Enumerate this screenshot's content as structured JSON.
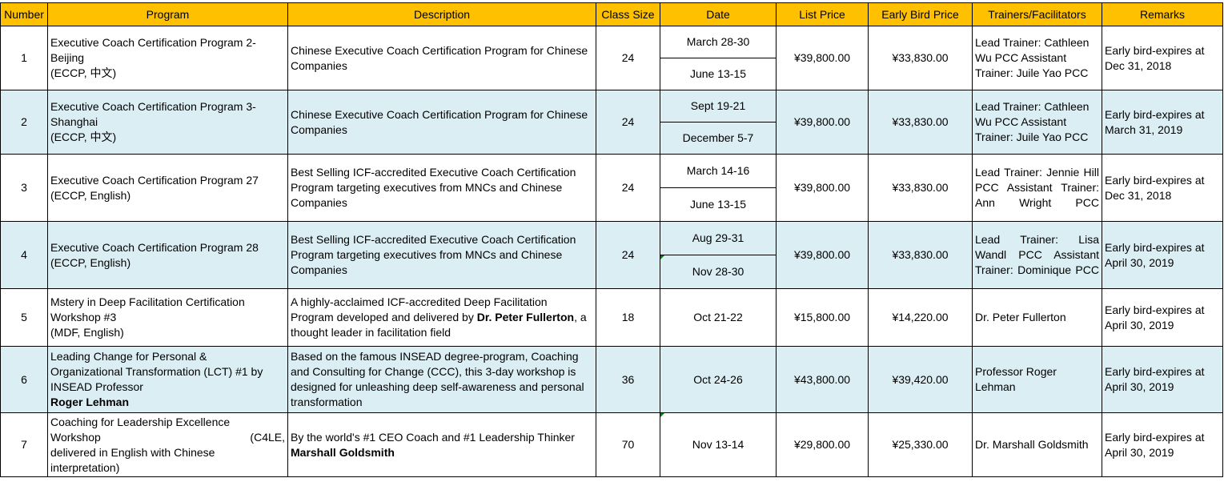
{
  "table": {
    "headers": [
      "Number",
      "Program",
      "Description",
      "Class Size",
      "Date",
      "List Price",
      "Early Bird Price",
      "Trainers/Facilitators",
      "Remarks"
    ],
    "rows": [
      {
        "number": "1",
        "program_lines": [
          "Executive Coach Certification Program 2-",
          "Beijing",
          "(ECCP, 中文)"
        ],
        "description": "Chinese Executive Coach Certification Program for Chinese Companies",
        "class_size": "24",
        "dates": [
          "March 28-30",
          "June 13-15"
        ],
        "list_price": "¥39,800.00",
        "early_bird_price": "¥33,830.00",
        "trainers": "Lead Trainer: Cathleen Wu PCC Assistant Trainer: Juile Yao PCC",
        "remarks": "Early bird-expires at Dec 31, 2018"
      },
      {
        "number": "2",
        "program_lines": [
          "Executive Coach Certification Program 3-",
          "Shanghai",
          "(ECCP, 中文)"
        ],
        "description": "Chinese Executive Coach Certification Program for Chinese Companies",
        "class_size": "24",
        "dates": [
          "Sept 19-21",
          "December 5-7"
        ],
        "list_price": "¥39,800.00",
        "early_bird_price": "¥33,830.00",
        "trainers": "Lead Trainer: Cathleen Wu PCC Assistant Trainer: Juile Yao PCC",
        "remarks": "Early bird-expires at March 31, 2019"
      },
      {
        "number": "3",
        "program_lines": [
          "Executive Coach Certification Program 27",
          "(ECCP, English)"
        ],
        "description": "Best Selling ICF-accredited Executive Coach Certification Program targeting executives from MNCs and Chinese Companies",
        "class_size": "24",
        "dates": [
          "March 14-16",
          "June 13-15"
        ],
        "list_price": "¥39,800.00",
        "early_bird_price": "¥33,830.00",
        "trainers": "Lead Trainer: Jennie Hill PCC Assistant Trainer: Ann Wright PCC",
        "remarks": "Early bird-expires at Dec 31, 2018"
      },
      {
        "number": "4",
        "program_lines": [
          "Executive Coach Certification Program 28",
          "(ECCP, English)"
        ],
        "description": "Best Selling ICF-accredited Executive Coach Certification Program targeting executives from MNCs and Chinese Companies",
        "class_size": "24",
        "dates": [
          "Aug 29-31",
          "Nov 28-30"
        ],
        "list_price": "¥39,800.00",
        "early_bird_price": "¥33,830.00",
        "trainers": "Lead Trainer: Lisa Wandl PCC Assistant Trainer: Dominique PCC",
        "remarks": "Early bird-expires at April 30, 2019"
      },
      {
        "number": "5",
        "program_lines": [
          "Mstery in Deep Facilitation Certification",
          "Workshop  #3",
          "(MDF, English)"
        ],
        "description_before": "A highly-acclaimed ICF-accredited Deep Facilitation Program developed and delivered by ",
        "description_bold": "Dr. Peter Fullerton",
        "description_after": ", a thought leader in facilitation field",
        "class_size": "18",
        "dates": [
          "Oct 21-22"
        ],
        "list_price": "¥15,800.00",
        "early_bird_price": "¥14,220.00",
        "trainers": "Dr. Peter Fullerton",
        "remarks": "Early bird-expires at April 30, 2019"
      },
      {
        "number": "6",
        "program_lines": [
          "Leading Change for Personal &",
          "Organizational Transformation (LCT) #1 by",
          "INSEAD Professor"
        ],
        "program_bold": "Roger Lehman",
        "description": "Based on the famous INSEAD degree-program, Coaching and Consulting for Change (CCC), this 3-day workshop is designed for unleashing deep self-awareness and personal transformation",
        "class_size": "36",
        "dates": [
          "Oct 24-26"
        ],
        "list_price": "¥43,800.00",
        "early_bird_price": "¥39,420.00",
        "trainers": "Professor Roger Lehman",
        "remarks": "Early bird-expires at April 30, 2019"
      },
      {
        "number": "7",
        "program_lines": [
          "Coaching for Leadership Excellence"
        ],
        "program_spread": [
          "Workshop",
          "(C4LE,"
        ],
        "program_lines_after": [
          "delivered in English with Chinese",
          "interpretation)"
        ],
        "description_line": "By the world's #1 CEO Coach and #1 Leadership Thinker",
        "description_bold": "Marshall Goldsmith",
        "class_size": "70",
        "dates": [
          "Nov 13-14"
        ],
        "list_price": "¥29,800.00",
        "early_bird_price": "¥25,330.00",
        "trainers": "Dr. Marshall Goldsmith",
        "remarks": "Early bird-expires at April 30, 2019"
      }
    ]
  }
}
